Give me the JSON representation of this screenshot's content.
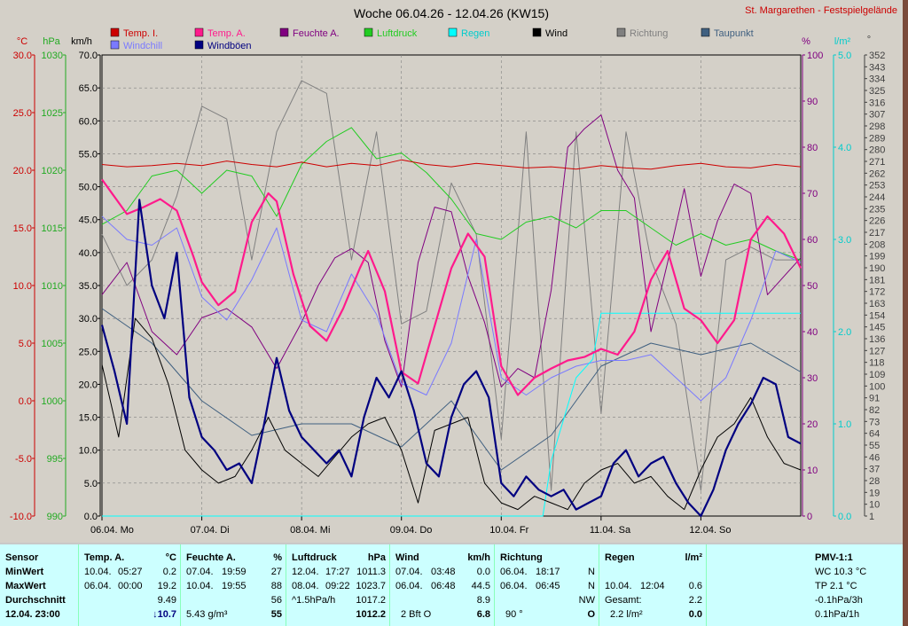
{
  "title": "Woche 06.04.26 - 12.04.26 (KW15)",
  "location": "St. Margarethen - Festspielgelände",
  "axis_units": {
    "celsius": "°C",
    "hpa": "hPa",
    "kmh": "km/h",
    "percent": "%",
    "rain": "l/m²",
    "degree": "°"
  },
  "legend": [
    {
      "label": "Temp. I.",
      "color": "#cc0000"
    },
    {
      "label": "Temp. A.",
      "color": "#ff1a8c"
    },
    {
      "label": "Feuchte A.",
      "color": "#800080"
    },
    {
      "label": "Luftdruck",
      "color": "#22cc22"
    },
    {
      "label": "Regen",
      "color": "#00ffff"
    },
    {
      "label": "Wind",
      "color": "#000000"
    },
    {
      "label": "Richtung",
      "color": "#808080"
    },
    {
      "label": "Taupunkt",
      "color": "#406080"
    },
    {
      "label": "Windchill",
      "color": "#7a7aff"
    },
    {
      "label": "Windböen",
      "color": "#000080"
    }
  ],
  "chart_data": {
    "type": "line",
    "title": "Woche 06.04.26 - 12.04.26 (KW15)",
    "x_unit": "hours since 06.04. 00:00",
    "x_range": [
      0,
      168
    ],
    "x_ticks": [
      {
        "hour": 0,
        "label": "06.04. Mo"
      },
      {
        "hour": 24,
        "label": "07.04. Di"
      },
      {
        "hour": 48,
        "label": "08.04. Mi"
      },
      {
        "hour": 72,
        "label": "09.04. Do"
      },
      {
        "hour": 96,
        "label": "10.04. Fr"
      },
      {
        "hour": 120,
        "label": "11.04. Sa"
      },
      {
        "hour": 144,
        "label": "12.04. So"
      }
    ],
    "axes": {
      "temp_c": {
        "min": -10,
        "max": 30,
        "ticks": [
          "30.0",
          "25.0",
          "20.0",
          "15.0",
          "10.0",
          "5.0",
          "0.0",
          "-5.0",
          "-10.0"
        ]
      },
      "pressure_hpa": {
        "min": 990,
        "max": 1030,
        "ticks": [
          "1030",
          "1025",
          "1020",
          "1015",
          "1010",
          "1005",
          "1000",
          "995",
          "990"
        ]
      },
      "wind_kmh": {
        "min": 0,
        "max": 70,
        "ticks": [
          "70.0",
          "65.0",
          "60.0",
          "55.0",
          "50.0",
          "45.0",
          "40.0",
          "35.0",
          "30.0",
          "25.0",
          "20.0",
          "15.0",
          "10.0",
          "5.0",
          "0.0"
        ]
      },
      "humidity_pct": {
        "min": 0,
        "max": 100,
        "ticks": [
          "100",
          "90",
          "80",
          "70",
          "60",
          "50",
          "40",
          "30",
          "20",
          "10",
          "0"
        ]
      },
      "rain_lm2": {
        "min": 0,
        "max": 5,
        "ticks": [
          "5.0",
          "4.0",
          "3.0",
          "2.0",
          "1.0",
          "0.0"
        ]
      },
      "direction_deg": {
        "min": 0,
        "max": 360,
        "ticks": [
          "352",
          "343",
          "334",
          "325",
          "316",
          "307",
          "298",
          "289",
          "280",
          "271",
          "262",
          "253",
          "244",
          "235",
          "226",
          "217",
          "208",
          "199",
          "190",
          "181",
          "172",
          "163",
          "154",
          "145",
          "136",
          "127",
          "118",
          "109",
          "100",
          "91",
          "82",
          "73",
          "64",
          "55",
          "46",
          "37",
          "28",
          "19",
          "10",
          "1"
        ]
      }
    },
    "series": [
      {
        "name": "Temp. I.",
        "unit": "°C",
        "x": [
          0,
          6,
          12,
          18,
          24,
          30,
          36,
          42,
          48,
          54,
          60,
          66,
          72,
          78,
          84,
          90,
          96,
          102,
          108,
          114,
          120,
          126,
          132,
          138,
          144,
          150,
          156,
          162,
          168
        ],
        "y": [
          20.5,
          20.3,
          20.4,
          20.6,
          20.4,
          20.8,
          20.5,
          20.3,
          20.7,
          20.3,
          20.6,
          20.4,
          20.9,
          20.5,
          20.3,
          20.6,
          20.4,
          20.2,
          20.3,
          20.1,
          20.4,
          20.2,
          20.1,
          20.4,
          20.6,
          20.3,
          20.2,
          20.5,
          20.3
        ]
      },
      {
        "name": "Temp. A.",
        "unit": "°C",
        "x": [
          0,
          6,
          10,
          14,
          18,
          22,
          24,
          28,
          32,
          36,
          40,
          42,
          46,
          50,
          54,
          58,
          62,
          64,
          68,
          72,
          76,
          80,
          84,
          88,
          92,
          96,
          100,
          104,
          108,
          112,
          116,
          120,
          124,
          128,
          132,
          136,
          140,
          144,
          148,
          152,
          156,
          160,
          164,
          168
        ],
        "y": [
          19.2,
          16.2,
          16.8,
          17.5,
          16.5,
          12.5,
          10.3,
          8.3,
          9.5,
          15.5,
          18.0,
          17.3,
          11.0,
          6.5,
          5.2,
          8.0,
          11.5,
          13.0,
          9.5,
          2.5,
          1.5,
          6.5,
          11.5,
          14.5,
          12.5,
          3.0,
          0.5,
          2.0,
          2.8,
          3.5,
          3.8,
          4.5,
          4.0,
          6.0,
          10.5,
          13.0,
          8.0,
          7.0,
          5.0,
          7.0,
          14.0,
          16.0,
          14.5,
          11.5
        ]
      },
      {
        "name": "Feuchte A.",
        "unit": "%",
        "x": [
          0,
          6,
          12,
          18,
          24,
          30,
          36,
          42,
          48,
          52,
          56,
          60,
          64,
          68,
          72,
          76,
          80,
          84,
          88,
          92,
          96,
          100,
          104,
          108,
          112,
          116,
          120,
          124,
          128,
          132,
          136,
          140,
          144,
          148,
          152,
          156,
          160,
          164,
          168
        ],
        "y": [
          48,
          55,
          40,
          35,
          43,
          45,
          41,
          32,
          42,
          50,
          56,
          58,
          55,
          38,
          28,
          55,
          67,
          66,
          52,
          42,
          28,
          32,
          30,
          49,
          80,
          84,
          87,
          75,
          69,
          40,
          55,
          71,
          52,
          64,
          72,
          70,
          48,
          52,
          56
        ]
      },
      {
        "name": "Luftdruck",
        "unit": "hPa",
        "x": [
          0,
          6,
          12,
          18,
          24,
          30,
          36,
          42,
          48,
          54,
          60,
          66,
          72,
          78,
          84,
          90,
          96,
          102,
          108,
          114,
          120,
          126,
          132,
          138,
          144,
          150,
          156,
          162,
          168
        ],
        "y": [
          1015.3,
          1016.5,
          1019.5,
          1020.0,
          1018.0,
          1020.0,
          1019.5,
          1016.0,
          1020.5,
          1022.5,
          1023.7,
          1021.0,
          1021.5,
          1019.8,
          1017.5,
          1014.5,
          1014.0,
          1015.5,
          1016.0,
          1015.0,
          1016.5,
          1016.5,
          1015.0,
          1013.5,
          1014.5,
          1013.5,
          1014.0,
          1013.0,
          1012.2
        ]
      },
      {
        "name": "Regen",
        "unit": "l/m²",
        "x": [
          0,
          98,
          100,
          101,
          104,
          106,
          108,
          110,
          112,
          114,
          118,
          120,
          130,
          144,
          168
        ],
        "y": [
          0,
          0,
          0,
          0,
          0,
          0,
          0.6,
          0.9,
          1.2,
          1.5,
          1.7,
          2.2,
          2.2,
          2.2,
          2.2
        ]
      },
      {
        "name": "Wind",
        "unit": "km/h",
        "x": [
          0,
          4,
          8,
          12,
          16,
          20,
          24,
          28,
          32,
          36,
          40,
          44,
          48,
          52,
          56,
          60,
          64,
          68,
          72,
          76,
          80,
          84,
          88,
          92,
          96,
          100,
          104,
          108,
          112,
          116,
          120,
          124,
          128,
          132,
          136,
          140,
          144,
          148,
          152,
          156,
          160,
          164,
          168
        ],
        "y": [
          23,
          12,
          30,
          27,
          20,
          10,
          7,
          5,
          6,
          10,
          15,
          10,
          8,
          6,
          9,
          12,
          14,
          15,
          10,
          2,
          13,
          14,
          15,
          5,
          2,
          1,
          3,
          2,
          1,
          5,
          7,
          8,
          5,
          6,
          3,
          1,
          7,
          12,
          14,
          18,
          12,
          8,
          7
        ]
      },
      {
        "name": "Windchill",
        "unit": "°C",
        "x": [
          0,
          6,
          12,
          18,
          24,
          30,
          36,
          42,
          48,
          54,
          60,
          66,
          72,
          78,
          84,
          90,
          96,
          102,
          108,
          114,
          120,
          126,
          132,
          138,
          144,
          150,
          156,
          162,
          168
        ],
        "y": [
          16,
          14,
          13.5,
          15,
          9,
          7,
          10.5,
          15,
          7,
          6,
          11,
          7.5,
          1.5,
          0.5,
          5,
          14,
          2,
          0.5,
          2,
          3,
          3.5,
          3.5,
          4,
          2,
          0,
          2,
          7,
          13,
          12
        ]
      },
      {
        "name": "Windböen",
        "unit": "km/h",
        "x": [
          0,
          3,
          6,
          9,
          12,
          15,
          18,
          21,
          24,
          27,
          30,
          33,
          36,
          39,
          42,
          45,
          48,
          51,
          54,
          57,
          60,
          63,
          66,
          69,
          72,
          75,
          78,
          81,
          84,
          87,
          90,
          93,
          96,
          99,
          102,
          105,
          108,
          111,
          114,
          117,
          120,
          123,
          126,
          129,
          132,
          135,
          138,
          141,
          144,
          147,
          150,
          153,
          156,
          159,
          162,
          165,
          168
        ],
        "y": [
          29,
          22,
          14,
          48,
          35,
          30,
          40,
          18,
          12,
          10,
          7,
          8,
          5,
          14,
          24,
          16,
          12,
          10,
          8,
          10,
          6,
          15,
          21,
          18,
          22,
          16,
          8,
          6,
          15,
          20,
          22,
          18,
          5,
          3,
          6,
          4,
          3,
          4,
          1,
          2,
          3,
          8,
          10,
          6,
          8,
          9,
          5,
          2,
          0,
          4,
          10,
          14,
          17,
          21,
          20,
          12,
          11
        ]
      },
      {
        "name": "Taupunkt",
        "unit": "°C",
        "x": [
          0,
          12,
          24,
          36,
          48,
          60,
          72,
          84,
          96,
          108,
          120,
          132,
          144,
          156,
          168
        ],
        "y": [
          8,
          5,
          0,
          -3,
          -2,
          -2,
          -4,
          0,
          -6,
          -3,
          3,
          5,
          4,
          5,
          2.5
        ]
      },
      {
        "name": "Richtung",
        "unit": "°",
        "x": [
          0,
          6,
          12,
          18,
          24,
          30,
          36,
          42,
          48,
          54,
          60,
          66,
          72,
          78,
          84,
          90,
          96,
          102,
          108,
          114,
          120,
          126,
          132,
          138,
          144,
          150,
          156,
          162,
          168
        ],
        "y": [
          220,
          180,
          200,
          250,
          320,
          310,
          200,
          300,
          340,
          330,
          200,
          300,
          150,
          160,
          260,
          220,
          60,
          300,
          20,
          300,
          80,
          300,
          200,
          150,
          20,
          200,
          210,
          200,
          200
        ]
      }
    ]
  },
  "stats": {
    "sensor": {
      "header": "Sensor",
      "rows": [
        "MinWert",
        "MaxWert",
        "Durchschnitt",
        "12.04. 23:00"
      ]
    },
    "temp": {
      "header": "Temp. A.",
      "unit": "°C",
      "rows": [
        [
          "10.04.",
          "05:27",
          "0.2"
        ],
        [
          "06.04.",
          "00:00",
          "19.2"
        ],
        [
          "",
          "",
          "9.49"
        ]
      ],
      "current": "↓10.7"
    },
    "humidity": {
      "header": "Feuchte A.",
      "unit": "%",
      "rows": [
        [
          "07.04.",
          "19:59",
          "27"
        ],
        [
          "10.04.",
          "19:55",
          "88"
        ],
        [
          "",
          "",
          "56"
        ]
      ],
      "current_extra": "5.43 g/m³",
      "current": "55"
    },
    "pressure": {
      "header": "Luftdruck",
      "unit": "hPa",
      "rows": [
        [
          "12.04.",
          "17:27",
          "1011.3"
        ],
        [
          "08.04.",
          "09:22",
          "1023.7"
        ],
        [
          "^1.5hPa/h",
          "",
          "1017.2"
        ]
      ],
      "current": "1012.2"
    },
    "wind": {
      "header": "Wind",
      "unit": "km/h",
      "rows": [
        [
          "07.04.",
          "03:48",
          "0.0"
        ],
        [
          "06.04.",
          "06:48",
          "44.5"
        ],
        [
          "",
          "",
          "8.9"
        ]
      ],
      "current_extra": "2 Bft O",
      "current": "6.8"
    },
    "direction": {
      "header": "Richtung",
      "rows": [
        [
          "06.04.",
          "18:17",
          "N"
        ],
        [
          "06.04.",
          "06:45",
          "N"
        ],
        [
          "",
          "",
          "NW"
        ]
      ],
      "current_extra": "90 °",
      "current": "O"
    },
    "rain": {
      "header": "Regen",
      "unit": "l/m²",
      "rows": [
        [
          "",
          "",
          ""
        ],
        [
          "10.04.",
          "12:04",
          "0.6"
        ],
        [
          "Gesamt:",
          "",
          "2.2"
        ]
      ],
      "current_extra": "2.2 l/m²",
      "current": "0.0"
    },
    "pmv": {
      "header": "PMV-1:1",
      "lines": [
        "WC 10.3 °C",
        "TP 2.1 °C",
        "-0.1hPa/3h",
        "0.1hPa/1h"
      ]
    }
  }
}
